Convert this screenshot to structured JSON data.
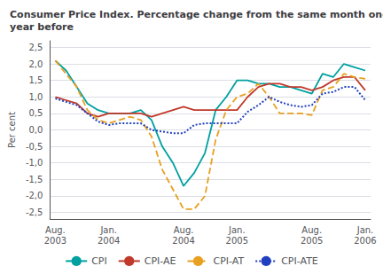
{
  "chart_data": {
    "type": "line",
    "title": "Consumer Price Index. Percentage change from the same month one\nyear before",
    "ylabel": "Per cent",
    "categories": [
      "Aug.\n2003",
      null,
      null,
      null,
      null,
      "Jan.\n2004",
      null,
      null,
      null,
      null,
      null,
      null,
      "Aug.\n2004",
      null,
      null,
      null,
      null,
      "Jan.\n2005",
      null,
      null,
      null,
      null,
      null,
      null,
      "Aug.\n2005",
      null,
      null,
      null,
      null,
      "Jan.\n2006"
    ],
    "series": [
      {
        "name": "CPI",
        "color": "#00a0a0",
        "line_style": "solid",
        "values": [
          2.1,
          1.8,
          1.3,
          0.8,
          0.6,
          0.5,
          0.5,
          0.5,
          0.6,
          0.3,
          -0.5,
          -1.0,
          -1.7,
          -1.3,
          -0.7,
          0.6,
          1.0,
          1.5,
          1.5,
          1.4,
          1.4,
          1.3,
          1.3,
          1.2,
          1.1,
          1.7,
          1.6,
          2.0,
          1.9,
          1.8
        ]
      },
      {
        "name": "CPI-AE",
        "color": "#c0392b",
        "line_style": "solid",
        "values": [
          1.0,
          0.9,
          0.8,
          0.5,
          0.4,
          0.5,
          0.5,
          0.5,
          0.5,
          0.4,
          0.5,
          0.6,
          0.7,
          0.6,
          0.6,
          0.6,
          0.6,
          0.6,
          1.0,
          1.3,
          1.4,
          1.4,
          1.3,
          1.3,
          1.2,
          1.3,
          1.5,
          1.6,
          1.6,
          1.2
        ]
      },
      {
        "name": "CPI-AT",
        "color": "#e8a020",
        "line_style": "dashed",
        "values": [
          2.1,
          1.7,
          1.3,
          0.6,
          0.3,
          0.2,
          0.3,
          0.4,
          0.3,
          -0.2,
          -1.2,
          -1.8,
          -2.4,
          -2.4,
          -2.0,
          -0.3,
          0.6,
          1.0,
          1.1,
          1.4,
          1.0,
          0.5,
          0.5,
          0.5,
          0.45,
          1.2,
          1.3,
          1.7,
          1.6,
          1.55
        ]
      },
      {
        "name": "CPI-ATE",
        "color": "#2040c0",
        "line_style": "dotted",
        "values": [
          0.95,
          0.85,
          0.75,
          0.5,
          0.25,
          0.15,
          0.2,
          0.2,
          0.2,
          0.0,
          -0.05,
          -0.1,
          -0.1,
          0.15,
          0.2,
          0.2,
          0.2,
          0.2,
          0.55,
          0.75,
          1.0,
          0.85,
          0.75,
          0.7,
          0.75,
          1.1,
          1.15,
          1.3,
          1.3,
          0.9
        ]
      }
    ],
    "ylim": [
      -2.7,
      2.7
    ],
    "yticks": [
      {
        "value": -2.5,
        "label": "-2,5"
      },
      {
        "value": -2.0,
        "label": "-2,0"
      },
      {
        "value": -1.5,
        "label": "-1,5"
      },
      {
        "value": -1.0,
        "label": "-1,0"
      },
      {
        "value": -0.5,
        "label": "-0,5"
      },
      {
        "value": 0.0,
        "label": "0,0"
      },
      {
        "value": 0.5,
        "label": "0,5"
      },
      {
        "value": 1.0,
        "label": "1,0"
      },
      {
        "value": 1.5,
        "label": "1,5"
      },
      {
        "value": 2.0,
        "label": "2,0"
      },
      {
        "value": 2.5,
        "label": "2,5"
      }
    ],
    "grid": true,
    "legend": "bottom"
  }
}
